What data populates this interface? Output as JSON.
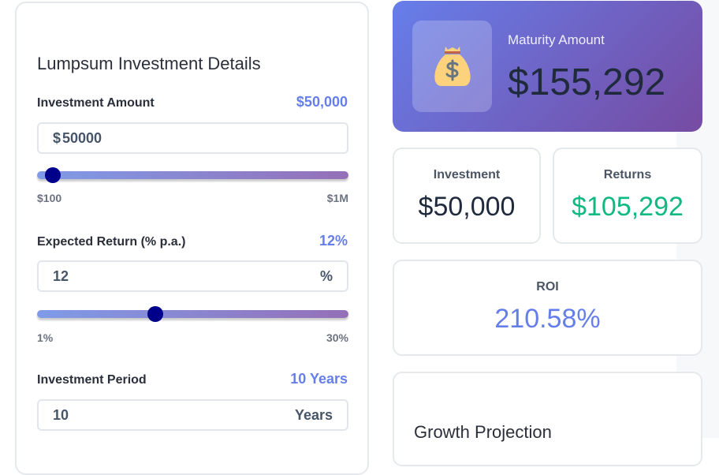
{
  "details": {
    "title": "Lumpsum Investment Details",
    "amount": {
      "label": "Investment Amount",
      "display": "$50,000",
      "prefix": "$",
      "input": "50000",
      "min": "$100",
      "max": "$1M",
      "slider_fraction": 0.05
    },
    "return": {
      "label": "Expected Return (% p.a.)",
      "display": "12%",
      "input": "12",
      "suffix": "%",
      "min": "1%",
      "max": "30%",
      "slider_fraction": 0.38
    },
    "period": {
      "label": "Investment Period",
      "display": "10 Years",
      "input": "10",
      "suffix": "Years"
    }
  },
  "results": {
    "maturity_label": "Maturity Amount",
    "maturity_value": "$155,292",
    "icon": "money-bag-icon",
    "investment_label": "Investment",
    "investment_value": "$50,000",
    "returns_label": "Returns",
    "returns_value": "$105,292",
    "roi_label": "ROI",
    "roi_value": "210.58%",
    "growth_title": "Growth Projection"
  },
  "colors": {
    "accent": "#667eea",
    "returns": "#10b981",
    "thumb": "#00008b"
  }
}
